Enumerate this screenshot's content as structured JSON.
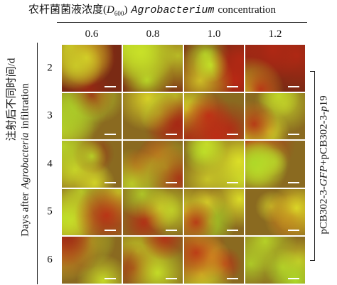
{
  "header": {
    "title": {
      "zh": "农杆菌菌液浓度(",
      "symbol": "D",
      "subscript": "600",
      "close": ")",
      "en_italic": "Agrobacterium",
      "en": "concentration"
    }
  },
  "columns": [
    "0.6",
    "0.8",
    "1.0",
    "1.2"
  ],
  "rows": [
    "2",
    "3",
    "4",
    "5",
    "6"
  ],
  "left_label": {
    "zh": "注射后不同时间/d",
    "en_prefix": "Days after",
    "en_italic": "Agrobacteria",
    "en_suffix": "infiltration"
  },
  "right_label": {
    "part1": "pCB302-3-",
    "italic1": "GFP",
    "part2": "+pCB302-3-",
    "italic2": "p",
    "part3": "19"
  }
}
